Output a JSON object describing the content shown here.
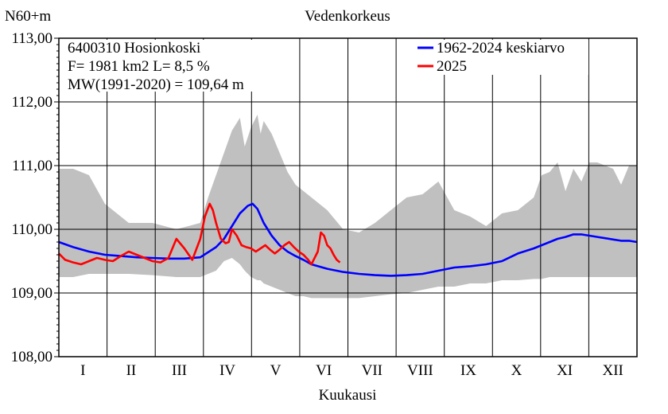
{
  "chart_data": {
    "type": "line",
    "title": "Vedenkorkeus",
    "ylabel": "N60+m",
    "xlabel": "Kuukausi",
    "ylim": [
      108.0,
      113.0
    ],
    "yticks": [
      "108,00",
      "109,00",
      "110,00",
      "111,00",
      "112,00",
      "113,00"
    ],
    "months": [
      "I",
      "II",
      "III",
      "IV",
      "V",
      "VI",
      "VII",
      "VIII",
      "IX",
      "X",
      "XI",
      "XII"
    ],
    "info": {
      "station": "6400310 Hosionkoski",
      "area": "F=   1981 km2 L=  8,5 %",
      "mw": "MW(1991-2020) = 109,64 m"
    },
    "legend_position": "top-right",
    "colors": {
      "mean": "#0000ff",
      "current": "#ff0000",
      "range": "#c0c0c0"
    },
    "range_band": {
      "name": "",
      "x": [
        1,
        10,
        20,
        30,
        45,
        60,
        75,
        90,
        95,
        100,
        105,
        110,
        115,
        118,
        122,
        126,
        128,
        130,
        135,
        140,
        145,
        150,
        155,
        160,
        170,
        180,
        190,
        200,
        210,
        220,
        230,
        240,
        250,
        260,
        270,
        280,
        290,
        300,
        305,
        310,
        315,
        320,
        325,
        330,
        335,
        340,
        345,
        350,
        355,
        360,
        365
      ],
      "upper": [
        110.95,
        110.95,
        110.85,
        110.4,
        110.1,
        110.1,
        110.0,
        110.1,
        110.5,
        110.85,
        111.2,
        111.55,
        111.75,
        111.3,
        111.6,
        111.8,
        111.5,
        111.7,
        111.5,
        111.2,
        110.9,
        110.7,
        110.6,
        110.5,
        110.3,
        110.0,
        109.95,
        110.1,
        110.3,
        110.5,
        110.55,
        110.75,
        110.3,
        110.2,
        110.05,
        110.25,
        110.3,
        110.5,
        110.85,
        110.9,
        111.05,
        110.6,
        110.95,
        110.75,
        111.05,
        111.05,
        111.0,
        110.95,
        110.7,
        111.0,
        111.0
      ],
      "lower": [
        109.25,
        109.25,
        109.3,
        109.3,
        109.3,
        109.28,
        109.25,
        109.25,
        109.3,
        109.35,
        109.5,
        109.55,
        109.45,
        109.35,
        109.25,
        109.2,
        109.2,
        109.15,
        109.1,
        109.05,
        109.0,
        108.95,
        108.95,
        108.92,
        108.92,
        108.92,
        108.92,
        108.95,
        108.98,
        109.0,
        109.05,
        109.1,
        109.1,
        109.15,
        109.15,
        109.2,
        109.2,
        109.22,
        109.22,
        109.25,
        109.25,
        109.25,
        109.25,
        109.25,
        109.25,
        109.25,
        109.25,
        109.25,
        109.25,
        109.25,
        109.25
      ]
    },
    "series": [
      {
        "name": "1962-2024 keskiarvo",
        "x": [
          1,
          10,
          20,
          30,
          40,
          50,
          60,
          70,
          80,
          90,
          100,
          105,
          110,
          115,
          120,
          123,
          126,
          130,
          135,
          140,
          145,
          150,
          155,
          160,
          170,
          180,
          190,
          200,
          210,
          220,
          230,
          240,
          250,
          260,
          270,
          280,
          290,
          300,
          305,
          310,
          315,
          320,
          325,
          330,
          335,
          340,
          345,
          350,
          355,
          360,
          365
        ],
        "values": [
          109.8,
          109.72,
          109.65,
          109.6,
          109.58,
          109.56,
          109.55,
          109.54,
          109.54,
          109.56,
          109.72,
          109.85,
          110.05,
          110.25,
          110.37,
          110.4,
          110.32,
          110.1,
          109.9,
          109.75,
          109.65,
          109.58,
          109.52,
          109.45,
          109.38,
          109.33,
          109.3,
          109.28,
          109.27,
          109.28,
          109.3,
          109.35,
          109.4,
          109.42,
          109.45,
          109.5,
          109.62,
          109.7,
          109.75,
          109.8,
          109.85,
          109.88,
          109.92,
          109.92,
          109.9,
          109.88,
          109.86,
          109.84,
          109.82,
          109.82,
          109.8
        ]
      },
      {
        "name": "2025",
        "x": [
          1,
          5,
          10,
          15,
          20,
          25,
          30,
          35,
          40,
          45,
          50,
          55,
          60,
          65,
          70,
          75,
          80,
          85,
          90,
          93,
          96,
          98,
          100,
          103,
          106,
          108,
          110,
          113,
          116,
          119,
          122,
          125,
          128,
          131,
          134,
          137,
          140,
          143,
          146,
          149,
          152,
          155,
          158,
          160,
          162,
          164,
          166,
          168,
          170,
          172,
          174,
          176,
          178
        ],
        "values": [
          109.62,
          109.52,
          109.48,
          109.45,
          109.5,
          109.55,
          109.52,
          109.5,
          109.58,
          109.65,
          109.6,
          109.55,
          109.5,
          109.48,
          109.55,
          109.85,
          109.7,
          109.52,
          109.85,
          110.2,
          110.4,
          110.3,
          110.1,
          109.85,
          109.78,
          109.8,
          110.0,
          109.9,
          109.75,
          109.72,
          109.7,
          109.65,
          109.7,
          109.75,
          109.68,
          109.62,
          109.68,
          109.75,
          109.8,
          109.72,
          109.65,
          109.6,
          109.52,
          109.45,
          109.55,
          109.65,
          109.95,
          109.9,
          109.75,
          109.7,
          109.6,
          109.52,
          109.48
        ]
      }
    ]
  }
}
